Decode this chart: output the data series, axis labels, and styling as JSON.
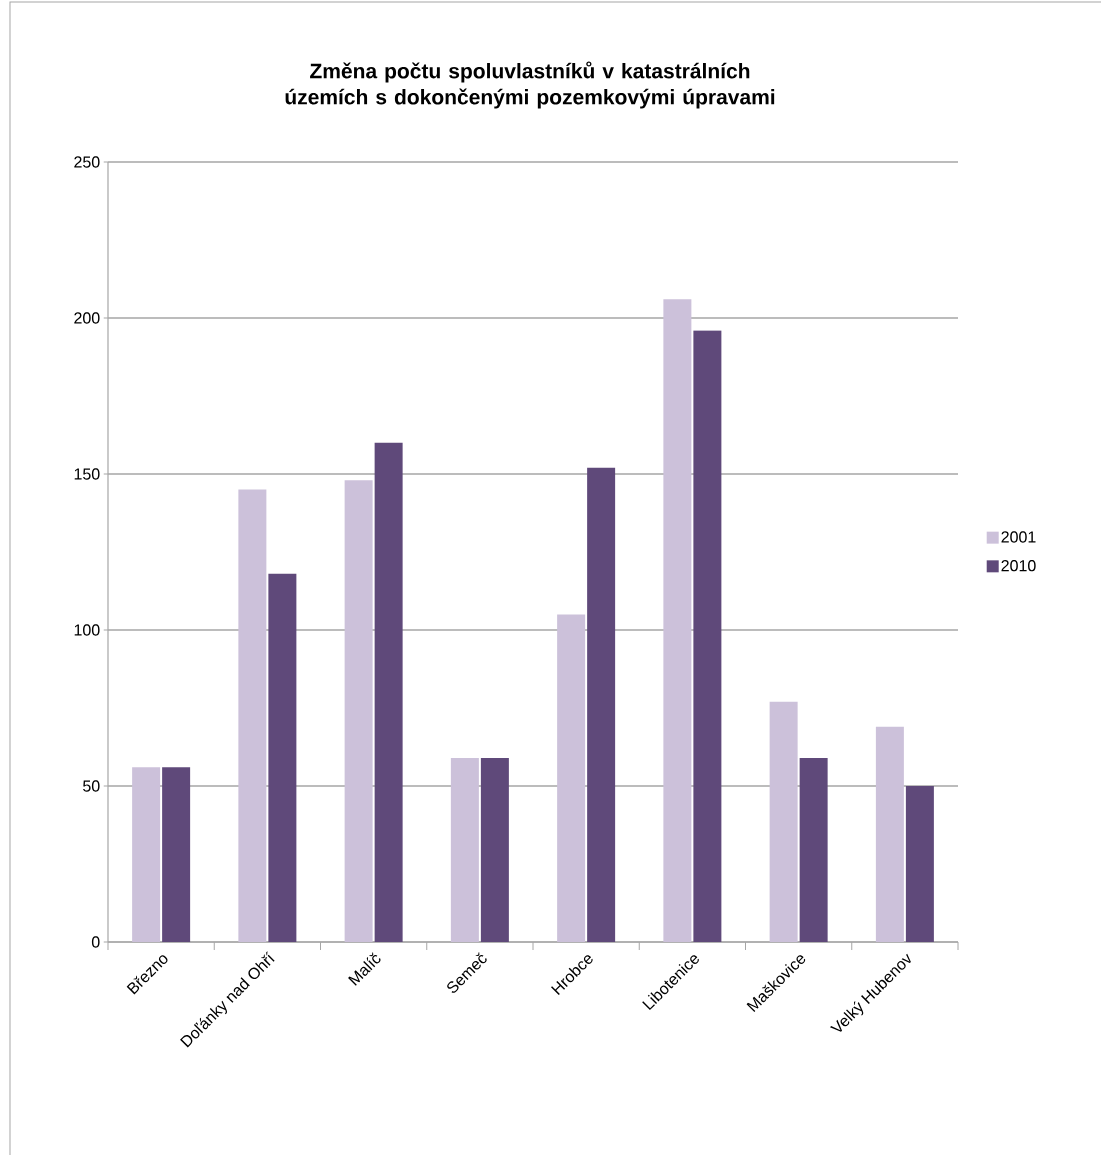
{
  "chart_data": {
    "type": "bar",
    "title": "Změna počtu spoluvlastníků v katastrálních územích s dokončenými pozemkovými úpravami",
    "categories": [
      "Březno",
      "Doľánky nad Ohří",
      "Malíč",
      "Semeč",
      "Hrobce",
      "Libotenice",
      "Maškovice",
      "Velký Hubenov"
    ],
    "series": [
      {
        "name": "2001",
        "color": "#ccc1da",
        "values": [
          56,
          145,
          148,
          59,
          105,
          206,
          77,
          69
        ]
      },
      {
        "name": "2010",
        "color": "#5f497a",
        "values": [
          56,
          118,
          160,
          59,
          152,
          196,
          59,
          50
        ]
      }
    ],
    "ylim": [
      0,
      250
    ],
    "yticks": [
      0,
      50,
      100,
      150,
      200,
      250
    ],
    "grid": "y",
    "legend": "right"
  }
}
